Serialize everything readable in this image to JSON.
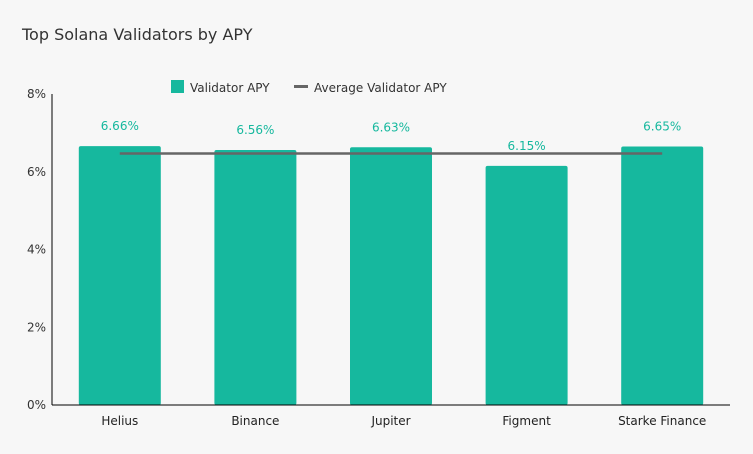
{
  "chart_data": {
    "type": "bar",
    "title": "Top Solana Validators by APY",
    "xlabel": "",
    "ylabel": "",
    "categories": [
      "Helius",
      "Binance",
      "Jupiter",
      "Figment",
      "Starke Finance"
    ],
    "series": [
      {
        "name": "Validator APY",
        "type": "bar",
        "values": [
          6.66,
          6.56,
          6.63,
          6.15,
          6.65
        ],
        "color": "#16b89e"
      },
      {
        "name": "Average Validator APY",
        "type": "line",
        "values": [
          6.47,
          6.47,
          6.47,
          6.47,
          6.47
        ],
        "color": "#666666"
      }
    ],
    "data_labels": [
      "6.66%",
      "6.56%",
      "6.63%",
      "6.15%",
      "6.65%"
    ],
    "ylim": [
      0,
      8
    ],
    "yticks": [
      0,
      2,
      4,
      6,
      8
    ],
    "ytick_labels": [
      "0%",
      "2%",
      "4%",
      "6%",
      "8%"
    ],
    "grid": false,
    "legend_position": "top-center"
  }
}
